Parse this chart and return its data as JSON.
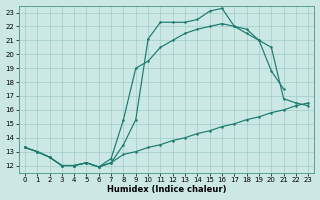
{
  "xlabel": "Humidex (Indice chaleur)",
  "bg_color": "#cce8e5",
  "line_color": "#1a7a6e",
  "grid_color": "#a0ccc8",
  "ylim": [
    11.5,
    23.5
  ],
  "xlim": [
    -0.5,
    23.5
  ],
  "yticks": [
    12,
    13,
    14,
    15,
    16,
    17,
    18,
    19,
    20,
    21,
    22,
    23
  ],
  "xticks": [
    0,
    1,
    2,
    3,
    4,
    5,
    6,
    7,
    8,
    9,
    10,
    11,
    12,
    13,
    14,
    15,
    16,
    17,
    18,
    19,
    20,
    21,
    22,
    23
  ],
  "line1_x": [
    0,
    1,
    2,
    3,
    4,
    5,
    6,
    7,
    8,
    9,
    10,
    11,
    12,
    13,
    14,
    15,
    16,
    17,
    18,
    19,
    20,
    21
  ],
  "line1_y": [
    13.3,
    13.0,
    12.6,
    12.0,
    12.0,
    12.2,
    11.9,
    12.2,
    13.5,
    15.3,
    21.1,
    22.3,
    22.3,
    22.3,
    22.5,
    23.1,
    23.3,
    22.0,
    21.8,
    21.0,
    18.8,
    17.5
  ],
  "line2_x": [
    0,
    1,
    2,
    3,
    4,
    5,
    6,
    7,
    8,
    9,
    10,
    11,
    12,
    13,
    14,
    15,
    16,
    17,
    18,
    19,
    20,
    21,
    22,
    23
  ],
  "line2_y": [
    13.3,
    13.0,
    12.6,
    12.0,
    12.0,
    12.2,
    11.9,
    12.5,
    15.3,
    19.0,
    19.5,
    20.5,
    21.0,
    21.5,
    21.8,
    22.0,
    22.2,
    22.0,
    21.5,
    21.0,
    20.5,
    16.8,
    16.5,
    16.3
  ],
  "line3_x": [
    0,
    1,
    2,
    3,
    4,
    5,
    6,
    7,
    8,
    9,
    10,
    11,
    12,
    13,
    14,
    15,
    16,
    17,
    18,
    19,
    20,
    21,
    22,
    23
  ],
  "line3_y": [
    13.3,
    13.0,
    12.6,
    12.0,
    12.0,
    12.2,
    11.9,
    12.2,
    12.8,
    13.0,
    13.3,
    13.5,
    13.8,
    14.0,
    14.3,
    14.5,
    14.8,
    15.0,
    15.3,
    15.5,
    15.8,
    16.0,
    16.3,
    16.5
  ]
}
